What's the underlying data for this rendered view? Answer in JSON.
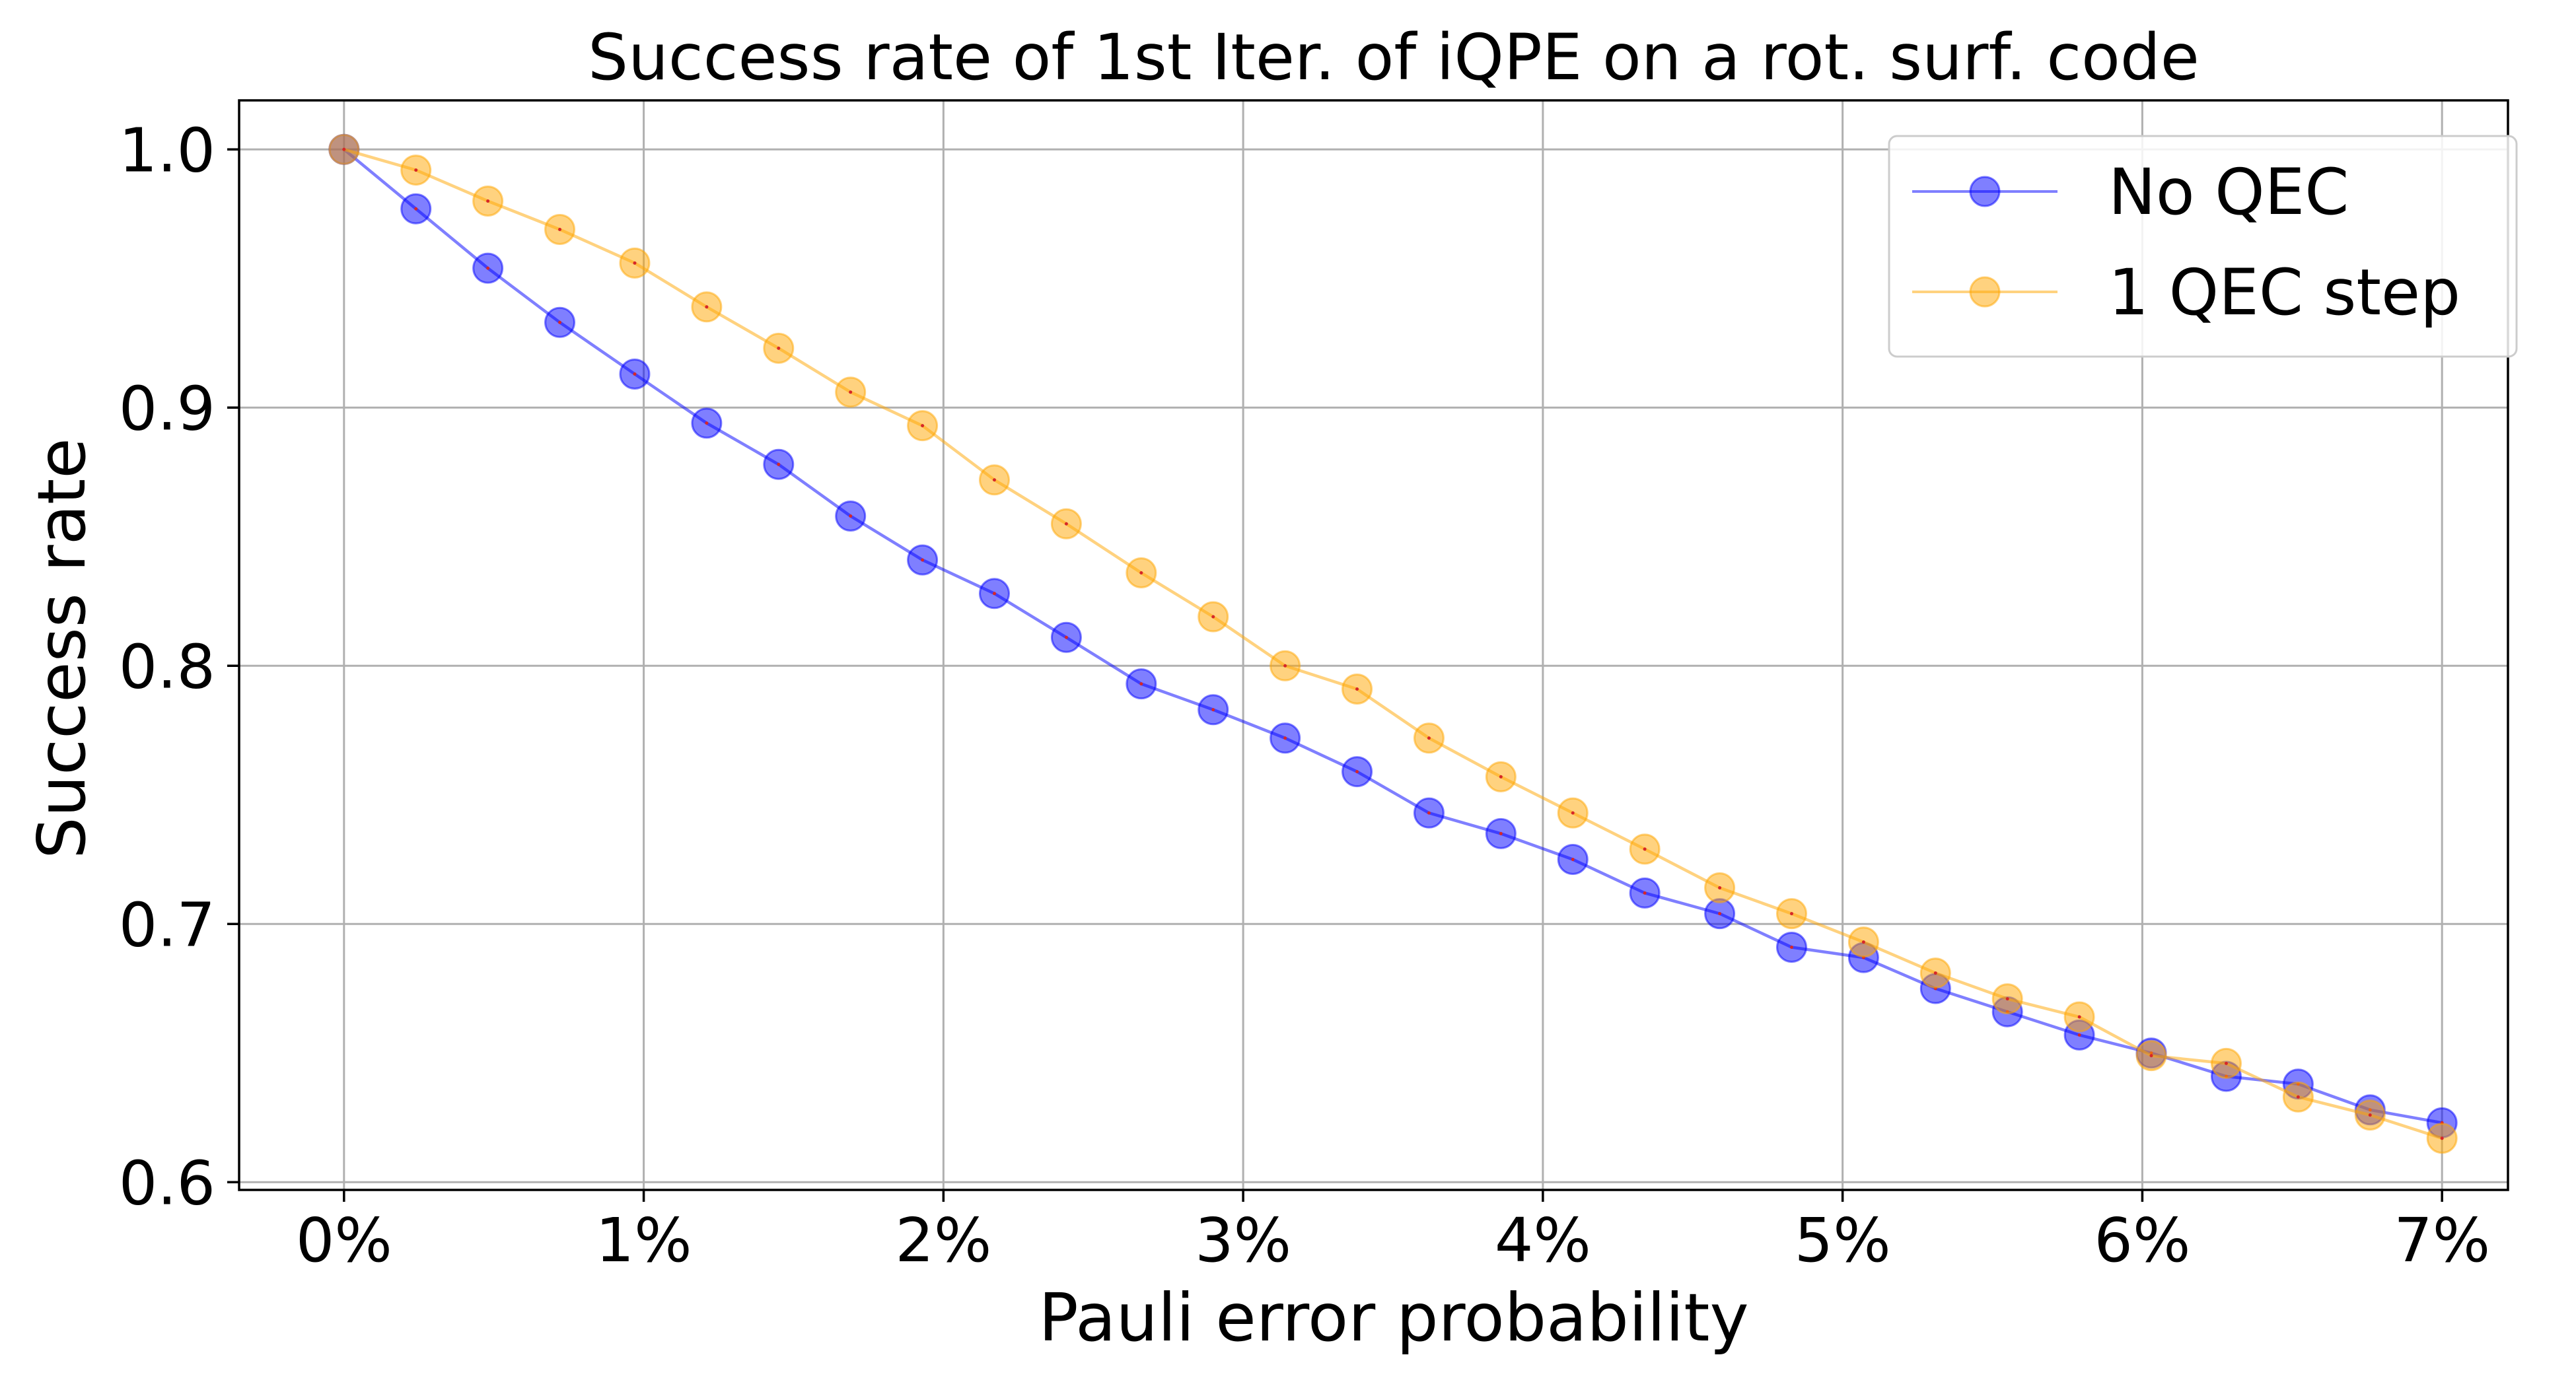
{
  "chart_data": {
    "type": "line",
    "title": "Success rate of 1st Iter. of iQPE on a rot. surf. code",
    "xlabel": "Pauli error probability",
    "ylabel": "Success rate",
    "xlim": [
      -0.0035,
      0.0722
    ],
    "ylim": [
      0.597,
      1.019
    ],
    "x_ticks": [
      0,
      0.01,
      0.02,
      0.03,
      0.04,
      0.05,
      0.06,
      0.07
    ],
    "x_tick_labels": [
      "0%",
      "1%",
      "2%",
      "3%",
      "4%",
      "5%",
      "6%",
      "7%"
    ],
    "y_ticks": [
      0.6,
      0.7,
      0.8,
      0.9,
      1.0
    ],
    "y_tick_labels": [
      "0.6",
      "0.7",
      "0.8",
      "0.9",
      "1.0"
    ],
    "grid": true,
    "legend_position": "top-right",
    "x": [
      0,
      0.0024,
      0.0048,
      0.0072,
      0.0097,
      0.0121,
      0.0145,
      0.0169,
      0.0193,
      0.0217,
      0.0241,
      0.0266,
      0.029,
      0.0314,
      0.0338,
      0.0362,
      0.0386,
      0.041,
      0.0434,
      0.0459,
      0.0483,
      0.0507,
      0.0531,
      0.0555,
      0.0579,
      0.0603,
      0.0628,
      0.0652,
      0.0676,
      0.07
    ],
    "series": [
      {
        "name": "No QEC",
        "color": "#0000ff",
        "values": [
          1.0,
          0.977,
          0.954,
          0.933,
          0.913,
          0.894,
          0.878,
          0.858,
          0.841,
          0.828,
          0.811,
          0.793,
          0.783,
          0.772,
          0.759,
          0.743,
          0.735,
          0.725,
          0.712,
          0.704,
          0.691,
          0.687,
          0.675,
          0.666,
          0.657,
          0.65,
          0.641,
          0.638,
          0.628,
          0.623
        ]
      },
      {
        "name": "1 QEC step",
        "color": "#ffa500",
        "values": [
          1.0,
          0.992,
          0.98,
          0.969,
          0.956,
          0.939,
          0.923,
          0.906,
          0.893,
          0.872,
          0.855,
          0.836,
          0.819,
          0.8,
          0.791,
          0.772,
          0.757,
          0.743,
          0.729,
          0.714,
          0.704,
          0.693,
          0.681,
          0.671,
          0.664,
          0.649,
          0.646,
          0.633,
          0.626,
          0.617
        ]
      }
    ]
  }
}
